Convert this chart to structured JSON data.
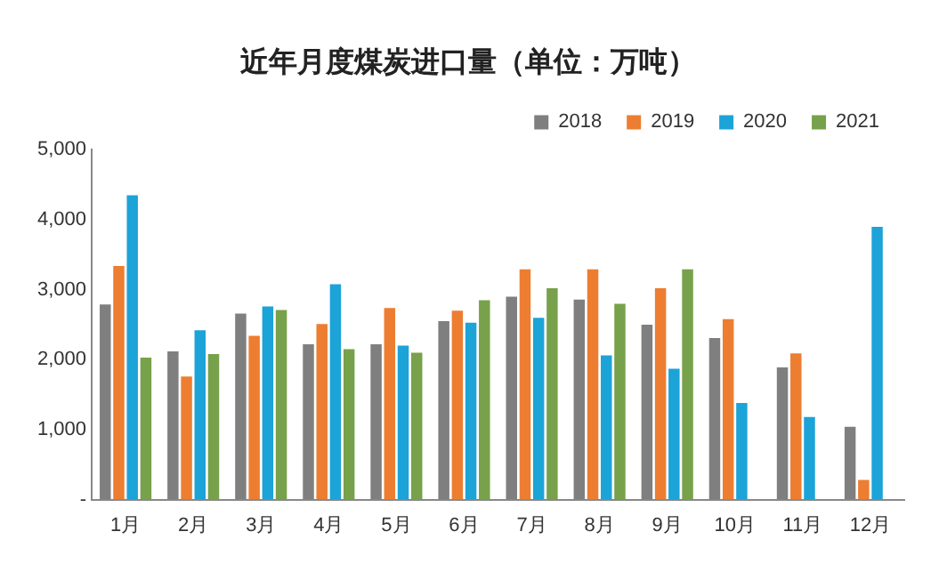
{
  "chart_data": {
    "type": "bar",
    "title": "近年月度煤炭进口量（单位：万吨）",
    "categories": [
      "1月",
      "2月",
      "3月",
      "4月",
      "5月",
      "6月",
      "7月",
      "8月",
      "9月",
      "10月",
      "11月",
      "12月"
    ],
    "series": [
      {
        "name": "2018",
        "color": "#7f7f7f",
        "values": [
          2790,
          2120,
          2660,
          2220,
          2220,
          2550,
          2900,
          2860,
          2500,
          2310,
          1890,
          1040
        ]
      },
      {
        "name": "2019",
        "color": "#ed7d31",
        "values": [
          3340,
          1760,
          2340,
          2510,
          2740,
          2700,
          3290,
          3290,
          3020,
          2580,
          2090,
          280
        ]
      },
      {
        "name": "2020",
        "color": "#1ca3d8",
        "values": [
          4350,
          2420,
          2760,
          3080,
          2200,
          2530,
          2600,
          2060,
          1870,
          1380,
          1180,
          3900
        ]
      },
      {
        "name": "2021",
        "color": "#77a14a",
        "values": [
          2030,
          2080,
          2710,
          2150,
          2100,
          2850,
          3020,
          2800,
          3290,
          null,
          null,
          null
        ]
      }
    ],
    "ylim": [
      0,
      5000
    ],
    "yticks": [
      {
        "value": 0,
        "label": "-"
      },
      {
        "value": 1000,
        "label": "1,000"
      },
      {
        "value": 2000,
        "label": "2,000"
      },
      {
        "value": 3000,
        "label": "3,000"
      },
      {
        "value": 4000,
        "label": "4,000"
      },
      {
        "value": 5000,
        "label": "5,000"
      }
    ],
    "grid": false,
    "legend": "top"
  }
}
